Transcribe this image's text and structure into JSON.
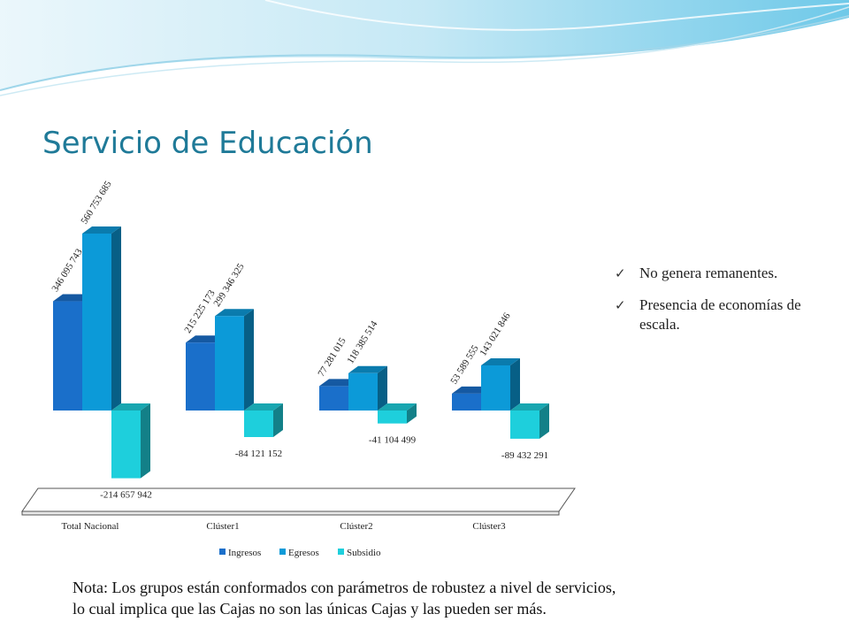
{
  "slide": {
    "title": "Servicio de Educación",
    "bullets": [
      {
        "icon": "check-icon",
        "text": "No genera remanentes."
      },
      {
        "icon": "check-icon",
        "text": "Presencia de economías de escala."
      }
    ],
    "note_lines": [
      "Nota: Los grupos están conformados con parámetros de robustez a nivel de servicios,",
      "lo cual implica que las Cajas  no son las únicas Cajas  y las  pueden ser más."
    ]
  },
  "chart_data": {
    "type": "bar",
    "style": "3d-clustered-column",
    "categories": [
      "Total Nacional",
      "Clúster1",
      "Clúster2",
      "Clúster3"
    ],
    "series": [
      {
        "name": "Ingresos",
        "color": "#1a6fca",
        "values": [
          346095743,
          215225173,
          77281015,
          53589555
        ],
        "labels": [
          "346 095 743",
          "215 225 173",
          "77 281 015",
          "53 589 555"
        ]
      },
      {
        "name": "Egresos",
        "color": "#0c9ad8",
        "values": [
          560753685,
          299346325,
          118385514,
          143021846
        ],
        "labels": [
          "560 753 685",
          "299 346 325",
          "118 385 514",
          "143 021 846"
        ]
      },
      {
        "name": "Subsidio",
        "color": "#1ecfdc",
        "values": [
          -214657942,
          -84121152,
          -41104499,
          -89432291
        ],
        "labels": [
          "-214 657 942",
          "-84 121 152",
          "-41 104 499",
          "-89 432 291"
        ]
      }
    ],
    "legend_position": "bottom",
    "grid": false,
    "title": "",
    "xlabel": "",
    "ylabel": ""
  }
}
